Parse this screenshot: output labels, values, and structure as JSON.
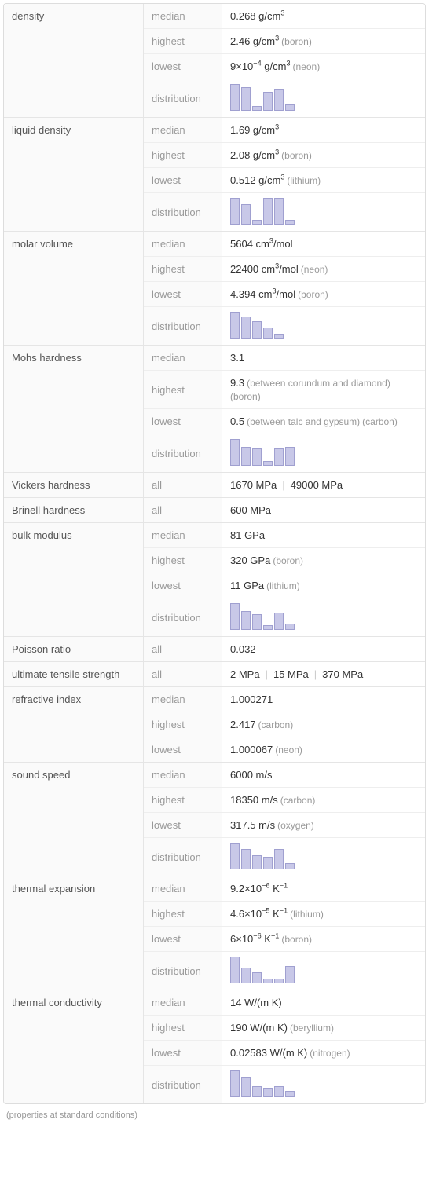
{
  "footer": "(properties at standard conditions)",
  "properties": [
    {
      "name": "density",
      "rows": [
        {
          "label": "median",
          "value": "0.268 g/cm³"
        },
        {
          "label": "highest",
          "value": "2.46 g/cm³",
          "elem": "(boron)"
        },
        {
          "label": "lowest",
          "value": "9×10⁻⁴ g/cm³",
          "elem": "(neon)"
        },
        {
          "label": "distribution",
          "dist": [
            34,
            30,
            6,
            24,
            28,
            8
          ]
        }
      ]
    },
    {
      "name": "liquid density",
      "rows": [
        {
          "label": "median",
          "value": "1.69 g/cm³"
        },
        {
          "label": "highest",
          "value": "2.08 g/cm³",
          "elem": "(boron)"
        },
        {
          "label": "lowest",
          "value": "0.512 g/cm³",
          "elem": "(lithium)"
        },
        {
          "label": "distribution",
          "dist": [
            34,
            26,
            6,
            34,
            34,
            6
          ]
        }
      ]
    },
    {
      "name": "molar volume",
      "rows": [
        {
          "label": "median",
          "value": "5604 cm³/mol"
        },
        {
          "label": "highest",
          "value": "22400 cm³/mol",
          "elem": "(neon)"
        },
        {
          "label": "lowest",
          "value": "4.394 cm³/mol",
          "elem": "(boron)"
        },
        {
          "label": "distribution",
          "dist": [
            34,
            28,
            22,
            14,
            6
          ]
        }
      ]
    },
    {
      "name": "Mohs hardness",
      "rows": [
        {
          "label": "median",
          "value": "3.1"
        },
        {
          "label": "highest",
          "value": "9.3",
          "note": "(between corundum and diamond)",
          "elem": "(boron)"
        },
        {
          "label": "lowest",
          "value": "0.5",
          "note": "(between talc and gypsum)",
          "elem": "(carbon)"
        },
        {
          "label": "distribution",
          "dist": [
            34,
            24,
            22,
            6,
            22,
            24
          ]
        }
      ]
    },
    {
      "name": "Vickers hardness",
      "rows": [
        {
          "label": "all",
          "values": [
            "1670 MPa",
            "49000 MPa"
          ]
        }
      ]
    },
    {
      "name": "Brinell hardness",
      "rows": [
        {
          "label": "all",
          "value": "600 MPa"
        }
      ]
    },
    {
      "name": "bulk modulus",
      "rows": [
        {
          "label": "median",
          "value": "81 GPa"
        },
        {
          "label": "highest",
          "value": "320 GPa",
          "elem": "(boron)"
        },
        {
          "label": "lowest",
          "value": "11 GPa",
          "elem": "(lithium)"
        },
        {
          "label": "distribution",
          "dist": [
            34,
            24,
            20,
            6,
            22,
            8
          ]
        }
      ]
    },
    {
      "name": "Poisson ratio",
      "rows": [
        {
          "label": "all",
          "value": "0.032"
        }
      ]
    },
    {
      "name": "ultimate tensile strength",
      "rows": [
        {
          "label": "all",
          "values": [
            "2 MPa",
            "15 MPa",
            "370 MPa"
          ]
        }
      ]
    },
    {
      "name": "refractive index",
      "rows": [
        {
          "label": "median",
          "value": "1.000271"
        },
        {
          "label": "highest",
          "value": "2.417",
          "elem": "(carbon)"
        },
        {
          "label": "lowest",
          "value": "1.000067",
          "elem": "(neon)"
        }
      ]
    },
    {
      "name": "sound speed",
      "rows": [
        {
          "label": "median",
          "value": "6000 m/s"
        },
        {
          "label": "highest",
          "value": "18350 m/s",
          "elem": "(carbon)"
        },
        {
          "label": "lowest",
          "value": "317.5 m/s",
          "elem": "(oxygen)"
        },
        {
          "label": "distribution",
          "dist": [
            34,
            26,
            18,
            16,
            26,
            8
          ]
        }
      ]
    },
    {
      "name": "thermal expansion",
      "rows": [
        {
          "label": "median",
          "value": "9.2×10⁻⁶ K⁻¹"
        },
        {
          "label": "highest",
          "value": "4.6×10⁻⁵ K⁻¹",
          "elem": "(lithium)"
        },
        {
          "label": "lowest",
          "value": "6×10⁻⁶ K⁻¹",
          "elem": "(boron)"
        },
        {
          "label": "distribution",
          "dist": [
            34,
            20,
            14,
            6,
            6,
            22
          ]
        }
      ]
    },
    {
      "name": "thermal conductivity",
      "rows": [
        {
          "label": "median",
          "value": "14 W/(m K)"
        },
        {
          "label": "highest",
          "value": "190 W/(m K)",
          "elem": "(beryllium)"
        },
        {
          "label": "lowest",
          "value": "0.02583 W/(m K)",
          "elem": "(nitrogen)"
        },
        {
          "label": "distribution",
          "dist": [
            34,
            26,
            14,
            12,
            14,
            8
          ]
        }
      ]
    }
  ],
  "colors": {
    "bar_fill": "#c8c8e8",
    "bar_border": "#a0a0d0",
    "border": "#e5e5e5",
    "text_main": "#333333",
    "text_muted": "#999999",
    "text_label": "#555555",
    "bg_alt": "#fafafa"
  }
}
